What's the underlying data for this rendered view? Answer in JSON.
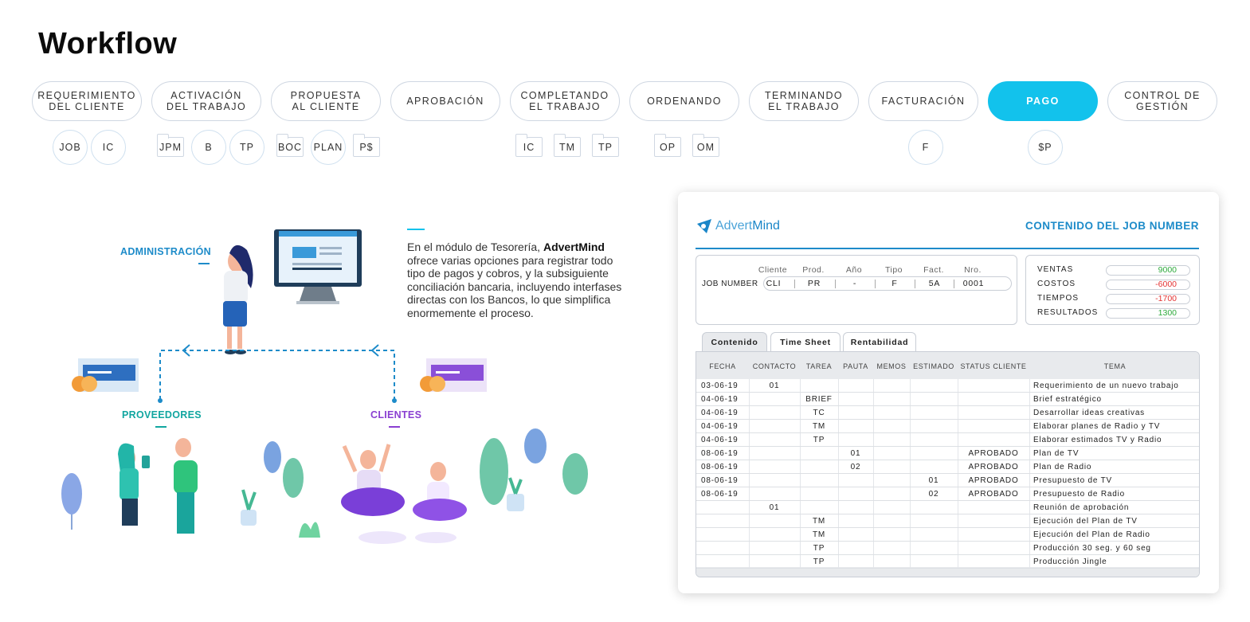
{
  "title": "Workflow",
  "steps": [
    {
      "label": "REQUERIMIENTO\nDEL CLIENTE"
    },
    {
      "label": "ACTIVACIÓN\nDEL TRABAJO"
    },
    {
      "label": "PROPUESTA\nAL CLIENTE"
    },
    {
      "label": "APROBACIÓN"
    },
    {
      "label": "COMPLETANDO\nEL TRABAJO"
    },
    {
      "label": "ORDENANDO"
    },
    {
      "label": "TERMINANDO\nEL TRABAJO"
    },
    {
      "label": "FACTURACIÓN"
    },
    {
      "label": "PAGO"
    },
    {
      "label": "CONTROL DE\nGESTIÓN"
    }
  ],
  "docs": {
    "job": "JOB",
    "ic1": "IC",
    "jpm": "JPM",
    "b": "B",
    "tp1": "TP",
    "boc": "BOC",
    "plan": "PLAN",
    "ps": "P$",
    "ic2": "IC",
    "tm": "TM",
    "tp2": "TP",
    "op": "OP",
    "om": "OM",
    "f": "F",
    "sp": "$P"
  },
  "illustration": {
    "administracion": "ADMINISTRACIÓN",
    "proveedores": "PROVEEDORES",
    "clientes": "CLIENTES",
    "desc_pre": "En el módulo de Tesorería, ",
    "desc_brand": "AdvertMind",
    "desc_post": " ofrece varias opciones para registrar todo tipo de pagos y cobros, y la subsiguiente conciliación bancaria, incluyendo interfases directas con los Bancos, lo que simplifica enormemente el proceso."
  },
  "colors": {
    "accent": "#12c2ec",
    "blue": "#1d8bc9",
    "teal": "#11a6a0",
    "purple": "#8a3fd1"
  },
  "card": {
    "logo_a": "Advert",
    "logo_b": "Mind",
    "title": "CONTENIDO DEL JOB NUMBER",
    "job": {
      "label": "JOB NUMBER",
      "headers": [
        "Cliente",
        "Prod.",
        "Año",
        "Tipo",
        "Fact.",
        "Nro."
      ],
      "values": [
        "CLI",
        "PR",
        "-",
        "F",
        "5A",
        "0001"
      ]
    },
    "metrics": [
      {
        "label": "VENTAS",
        "value": "9000",
        "color": "#2eaa3d"
      },
      {
        "label": "COSTOS",
        "value": "-6000",
        "color": "#e33232"
      },
      {
        "label": "TIEMPOS",
        "value": "-1700",
        "color": "#e33232"
      },
      {
        "label": "RESULTADOS",
        "value": "1300",
        "color": "#2eaa3d"
      }
    ],
    "tabs": [
      "Contenido",
      "Time Sheet",
      "Rentabilidad"
    ],
    "columns": [
      "FECHA",
      "CONTACTO",
      "TAREA",
      "PAUTA",
      "MEMOS",
      "ESTIMADO",
      "STATUS CLIENTE",
      "TEMA"
    ],
    "rows": [
      [
        "03-06-19",
        "01",
        "",
        "",
        "",
        "",
        "",
        "Requerimiento de un nuevo trabajo"
      ],
      [
        "04-06-19",
        "",
        "BRIEF",
        "",
        "",
        "",
        "",
        "Brief estratégico"
      ],
      [
        "04-06-19",
        "",
        "TC",
        "",
        "",
        "",
        "",
        "Desarrollar ideas creativas"
      ],
      [
        "04-06-19",
        "",
        "TM",
        "",
        "",
        "",
        "",
        "Elaborar planes de Radio y TV"
      ],
      [
        "04-06-19",
        "",
        "TP",
        "",
        "",
        "",
        "",
        "Elaborar estimados TV y Radio"
      ],
      [
        "08-06-19",
        "",
        "",
        "01",
        "",
        "",
        "APROBADO",
        "Plan de TV"
      ],
      [
        "08-06-19",
        "",
        "",
        "02",
        "",
        "",
        "APROBADO",
        "Plan de Radio"
      ],
      [
        "08-06-19",
        "",
        "",
        "",
        "",
        "01",
        "APROBADO",
        "Presupuesto de TV"
      ],
      [
        "08-06-19",
        "",
        "",
        "",
        "",
        "02",
        "APROBADO",
        "Presupuesto de Radio"
      ],
      [
        "",
        "01",
        "",
        "",
        "",
        "",
        "",
        "Reunión de aprobación"
      ],
      [
        "",
        "",
        "TM",
        "",
        "",
        "",
        "",
        "Ejecución del Plan de TV"
      ],
      [
        "",
        "",
        "TM",
        "",
        "",
        "",
        "",
        "Ejecución del Plan de Radio"
      ],
      [
        "",
        "",
        "TP",
        "",
        "",
        "",
        "",
        "Producción 30 seg. y 60 seg"
      ],
      [
        "",
        "",
        "TP",
        "",
        "",
        "",
        "",
        "Producción Jingle"
      ]
    ]
  }
}
